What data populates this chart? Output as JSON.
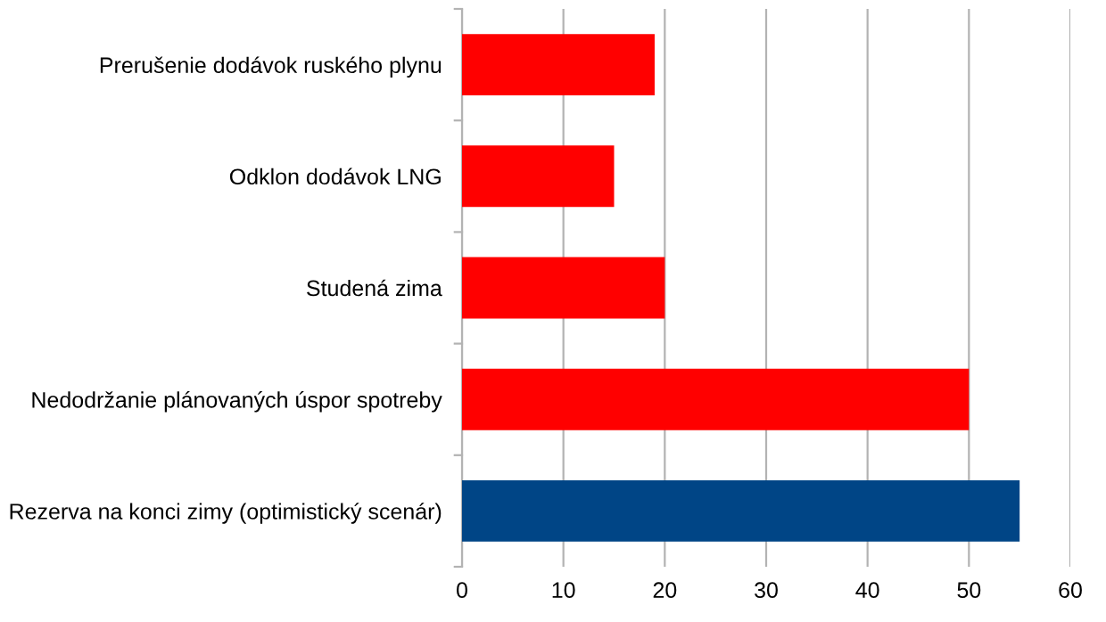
{
  "chart_data": {
    "type": "bar",
    "orientation": "horizontal",
    "categories": [
      "Prerušenie dodávok ruského plynu",
      "Odklon dodávok LNG",
      "Studená zima",
      "Nedodržanie plánovaných úspor spotreby",
      "Rezerva na konci zimy (optimistický scenár)"
    ],
    "values": [
      19,
      15,
      20,
      50,
      55
    ],
    "colors": [
      "#ff0000",
      "#ff0000",
      "#ff0000",
      "#ff0000",
      "#004586"
    ],
    "xlim": [
      0,
      60
    ],
    "xticks": [
      0,
      10,
      20,
      30,
      40,
      50,
      60
    ],
    "grid": "x"
  }
}
